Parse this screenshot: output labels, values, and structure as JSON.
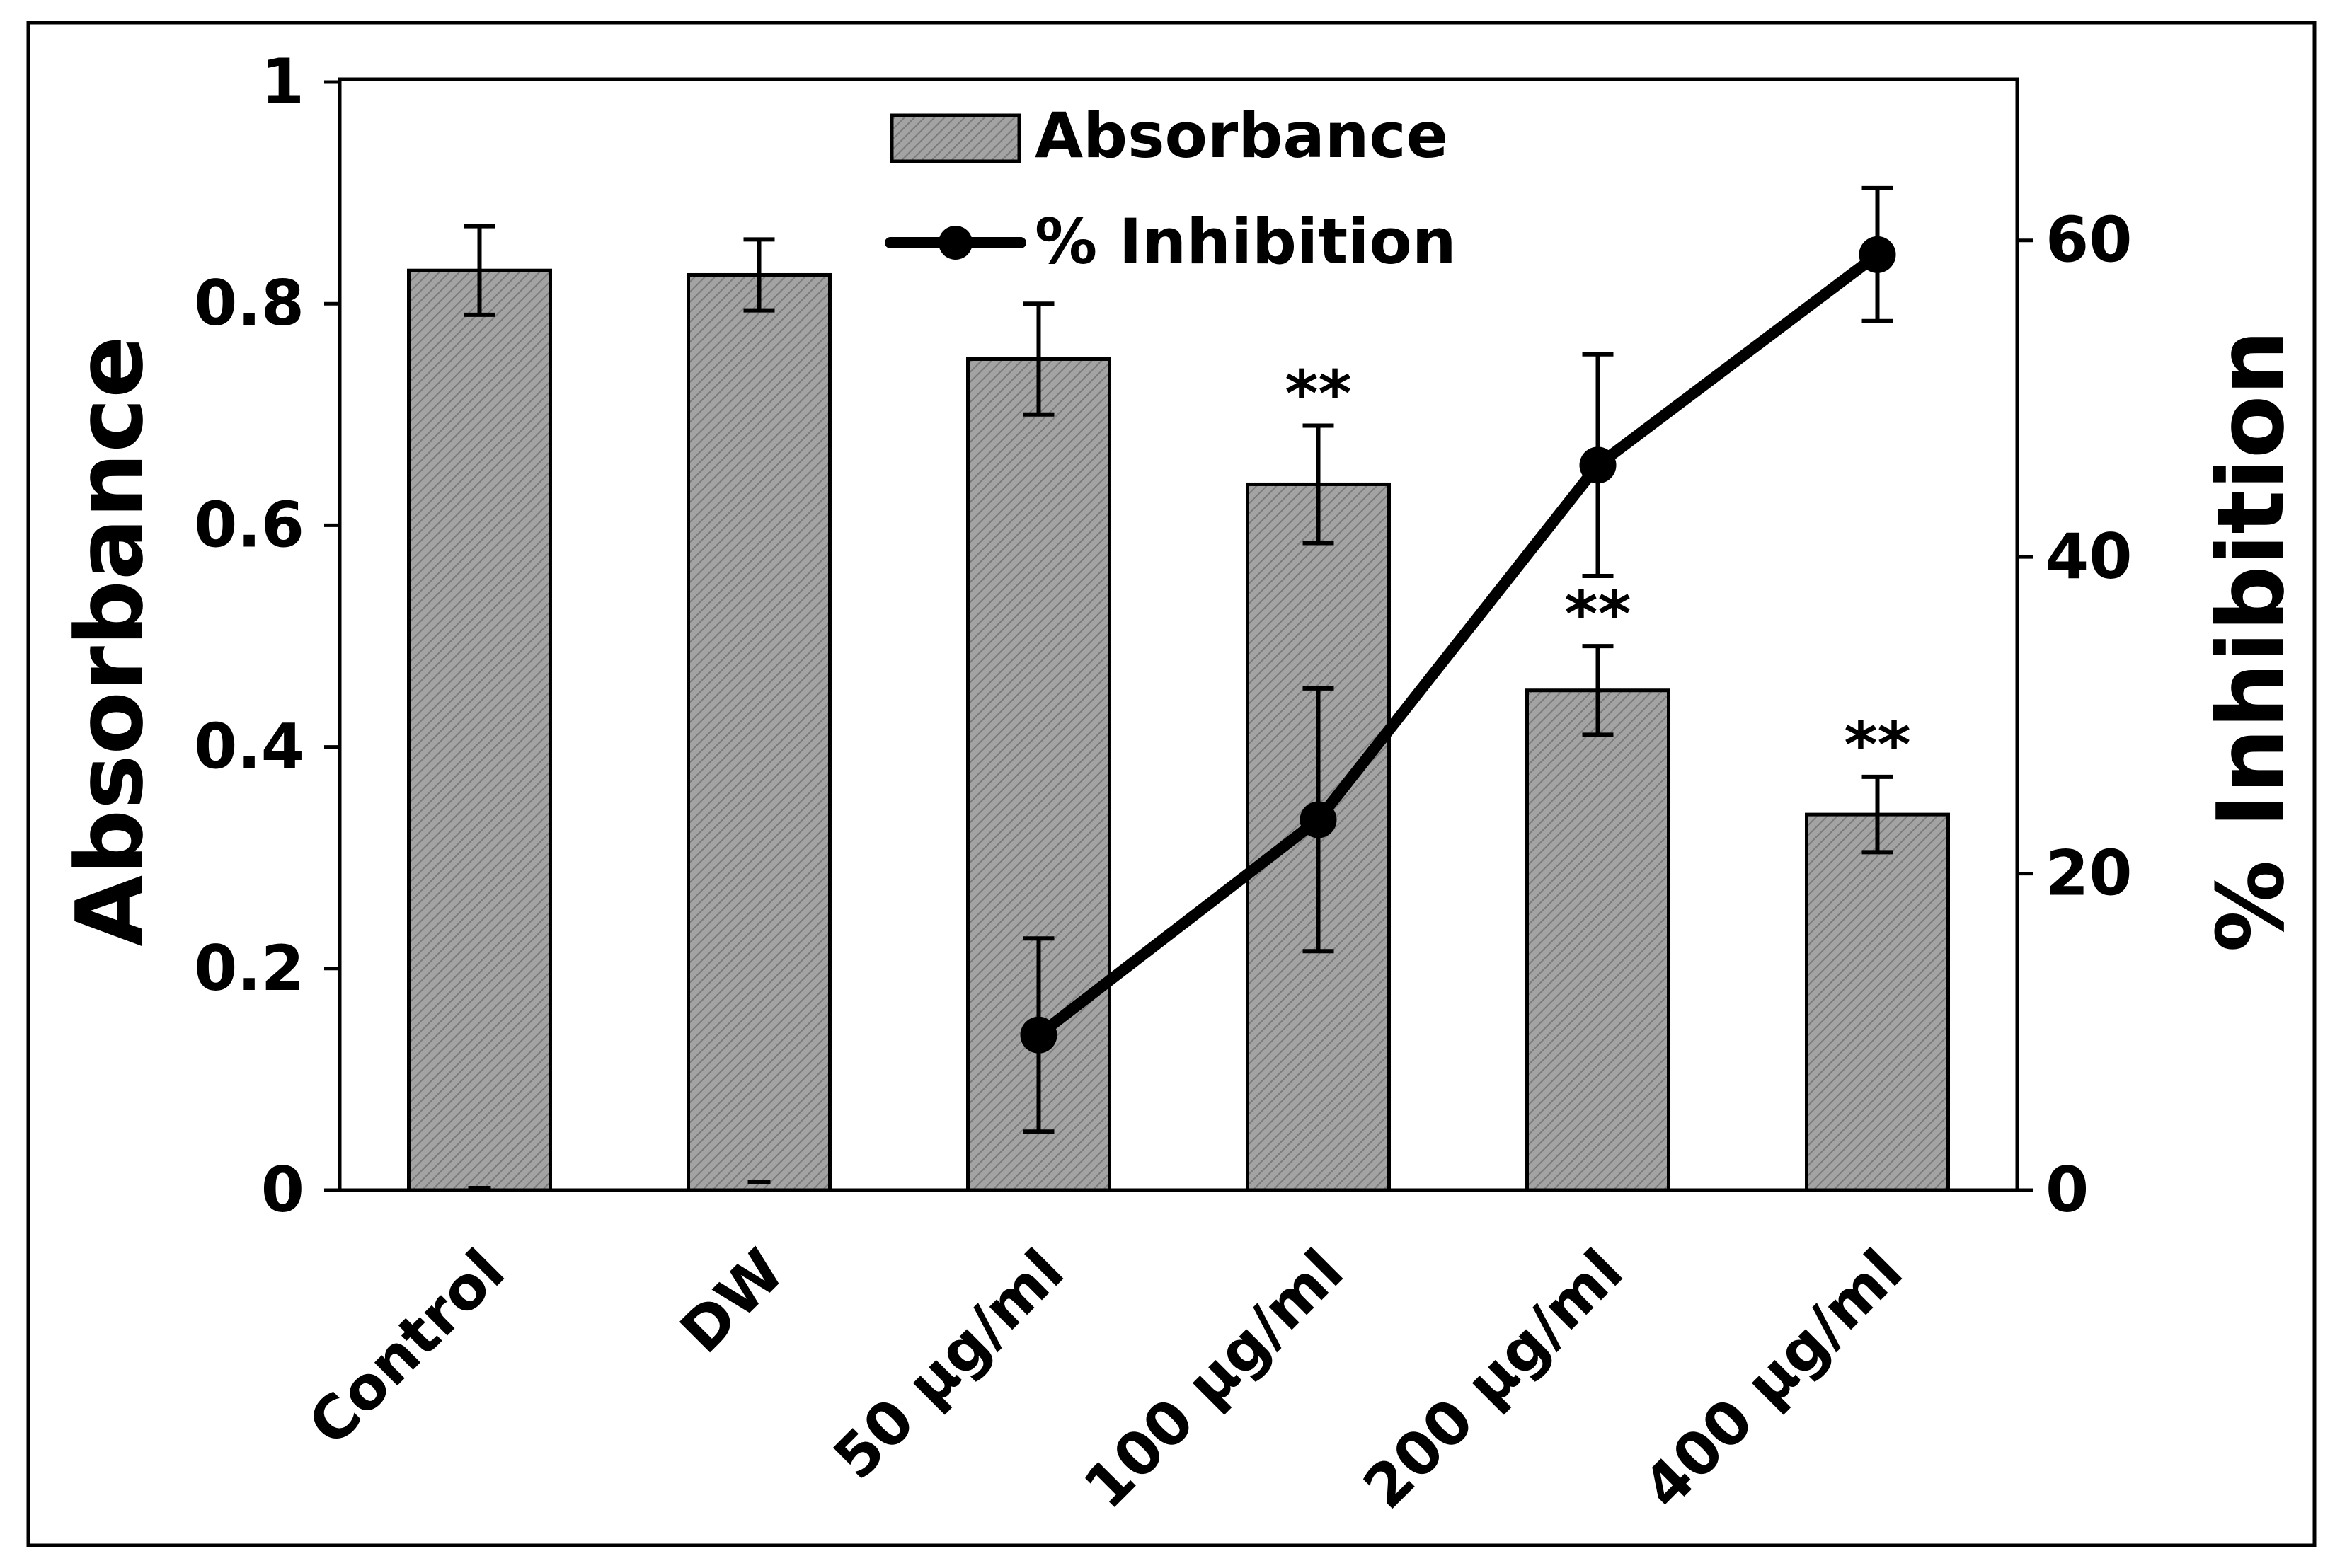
{
  "chart_data": {
    "type": "bar",
    "categories": [
      "Control",
      "DW",
      "50 µg/ml",
      "100 µg/ml",
      "200 µg/ml",
      "400 µg/ml"
    ],
    "series": [
      {
        "name": "Absorbance",
        "kind": "bar",
        "axis": "left",
        "values": [
          0.83,
          0.826,
          0.75,
          0.637,
          0.451,
          0.339
        ],
        "errors": [
          0.04,
          0.032,
          0.05,
          0.053,
          0.04,
          0.034
        ],
        "significance": [
          "",
          "",
          "",
          "**",
          "**",
          "**"
        ]
      },
      {
        "name": "% Inhibition",
        "kind": "line",
        "axis": "right",
        "values": [
          null,
          null,
          9.8,
          23.4,
          45.8,
          59.1
        ],
        "errors": [
          null,
          null,
          6.1,
          8.3,
          7.0,
          4.2
        ]
      }
    ],
    "ylabel": "Absorbance",
    "y2label": "% Inhibition",
    "ylim": [
      0,
      1
    ],
    "y2lim": [
      0,
      70
    ],
    "yticks": [
      "0",
      "0.2",
      "0.4",
      "0.6",
      "0.8",
      "1"
    ],
    "y2ticks": [
      "0",
      "20",
      "40",
      "60"
    ],
    "legend": {
      "position": "top-center"
    },
    "grid": false,
    "colors": {
      "bar_fill": "#9a9a9a",
      "bar_stroke": "#000000",
      "line": "#000000"
    }
  }
}
